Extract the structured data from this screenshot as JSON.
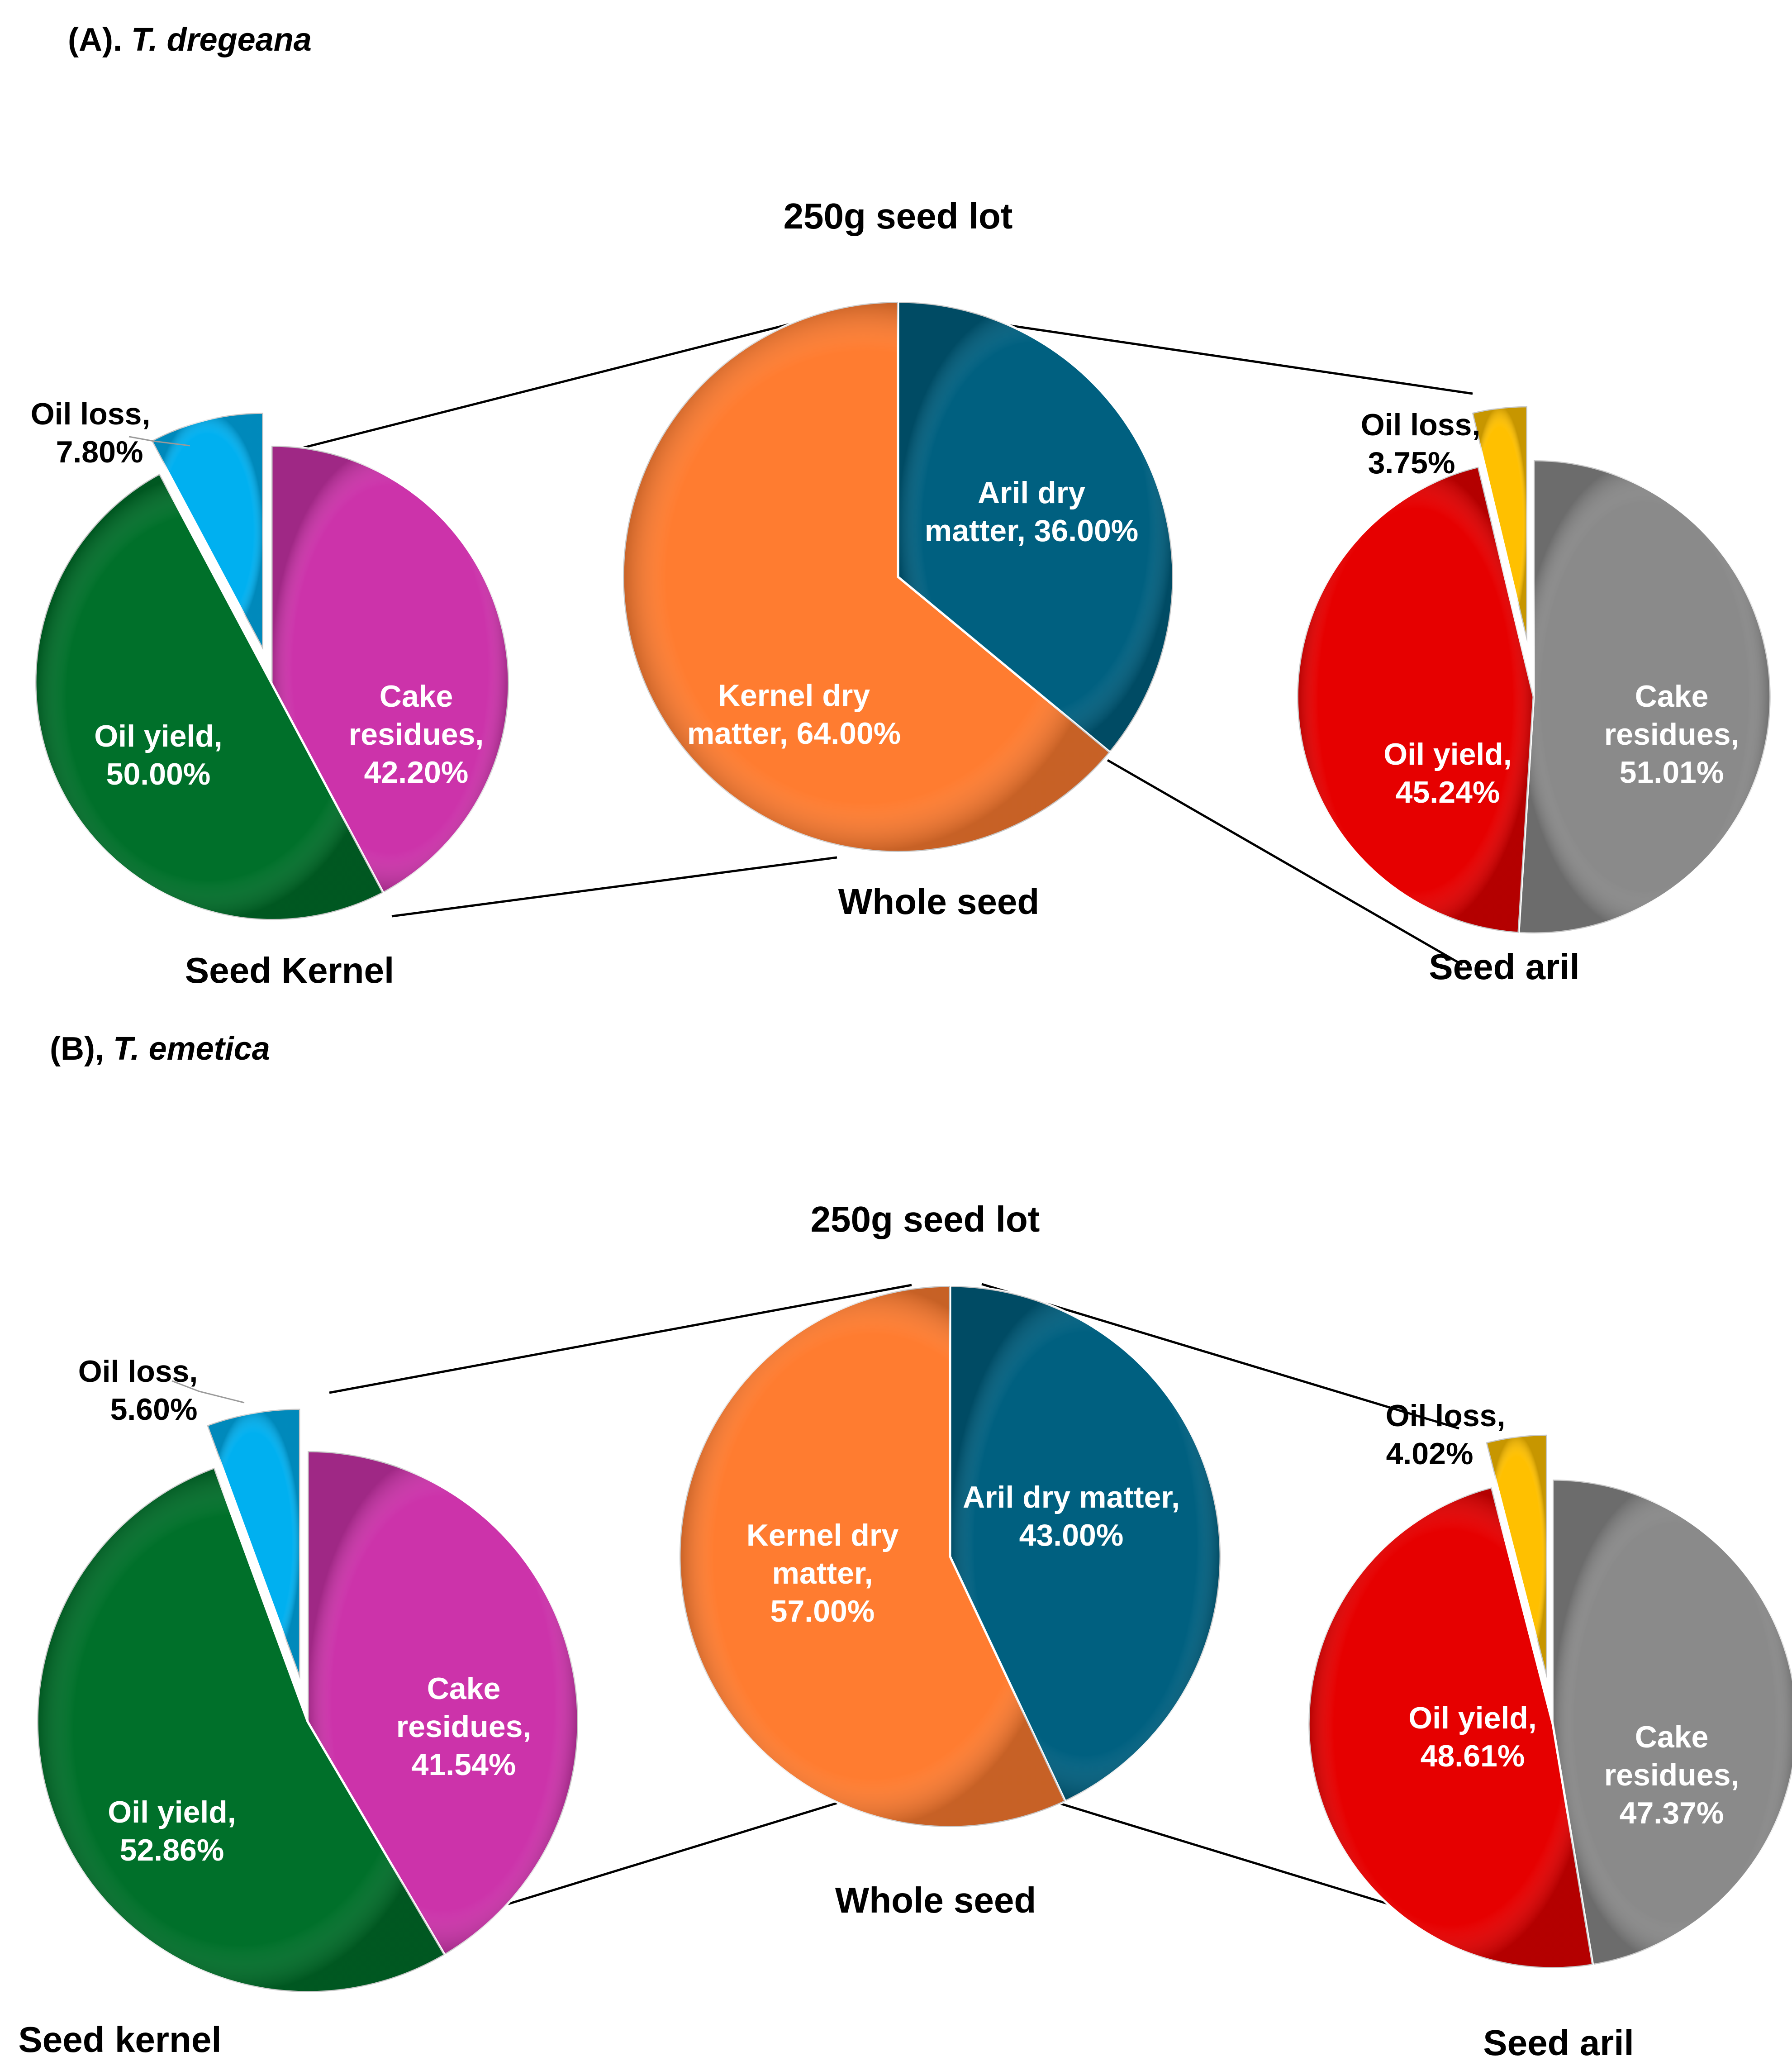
{
  "colors": {
    "oil_loss_kernel": "#00b0f0",
    "cake_residues_kernel": "#cc33aa",
    "oil_yield_kernel": "#00702a",
    "aril_dry_matter": "#006080",
    "kernel_dry_matter": "#ff7c30",
    "oil_loss_aril": "#ffc000",
    "cake_residues_aril": "#8a8a8a",
    "oil_yield_aril": "#e60000"
  },
  "panels": {
    "a": {
      "label": "(A).",
      "species": "T. dregeana",
      "top_caption": "250g seed lot",
      "kernel_caption": "Seed Kernel",
      "whole_caption": "Whole seed",
      "aril_caption": "Seed aril",
      "kernel_labels": [
        "Oil loss,",
        "7.80%",
        "Cake",
        "residues,",
        "42.20%",
        "Oil yield,",
        "50.00%"
      ],
      "whole_labels": [
        "Aril dry",
        "matter, 36.00%",
        "Kernel dry",
        "matter, 64.00%"
      ],
      "aril_labels": [
        "Oil loss,",
        "3.75%",
        "Cake",
        "residues,",
        "51.01%",
        "Oil yield,",
        "45.24%"
      ]
    },
    "b": {
      "label": "(B),",
      "species": "T. emetica",
      "top_caption": "250g seed lot",
      "kernel_caption": "Seed kernel",
      "whole_caption": "Whole seed",
      "aril_caption": "Seed aril",
      "kernel_labels": [
        "Oil loss,",
        "5.60%",
        "Cake",
        "residues,",
        "41.54%",
        "Oil yield,",
        "52.86%"
      ],
      "whole_labels": [
        "Aril dry matter,",
        "43.00%",
        "Kernel dry",
        "matter,",
        "57.00%"
      ],
      "aril_labels": [
        "Oil loss,",
        "4.02%",
        "Cake",
        "residues,",
        "47.37%",
        "Oil yield,",
        "48.61%"
      ]
    }
  },
  "chart_data": [
    {
      "type": "pie",
      "panel": "(A). T. dregeana",
      "title": "Seed Kernel",
      "slices": [
        {
          "label": "Oil loss",
          "value": 7.8
        },
        {
          "label": "Cake residues",
          "value": 42.2
        },
        {
          "label": "Oil yield",
          "value": 50.0
        }
      ]
    },
    {
      "type": "pie",
      "panel": "(A). T. dregeana",
      "title": "250g seed lot",
      "xlabel": "Whole seed",
      "slices": [
        {
          "label": "Aril dry matter",
          "value": 36.0
        },
        {
          "label": "Kernel dry matter",
          "value": 64.0
        }
      ]
    },
    {
      "type": "pie",
      "panel": "(A). T. dregeana",
      "title": "Seed aril",
      "slices": [
        {
          "label": "Oil loss",
          "value": 3.75
        },
        {
          "label": "Cake residues",
          "value": 51.01
        },
        {
          "label": "Oil yield",
          "value": 45.24
        }
      ]
    },
    {
      "type": "pie",
      "panel": "(B), T. emetica",
      "title": "Seed kernel",
      "slices": [
        {
          "label": "Oil loss",
          "value": 5.6
        },
        {
          "label": "Cake residues",
          "value": 41.54
        },
        {
          "label": "Oil yield",
          "value": 52.86
        }
      ]
    },
    {
      "type": "pie",
      "panel": "(B), T. emetica",
      "title": "250g seed lot",
      "xlabel": "Whole seed",
      "slices": [
        {
          "label": "Aril dry matter",
          "value": 43.0
        },
        {
          "label": "Kernel dry matter",
          "value": 57.0
        }
      ]
    },
    {
      "type": "pie",
      "panel": "(B), T. emetica",
      "title": "Seed aril",
      "slices": [
        {
          "label": "Oil loss",
          "value": 4.02
        },
        {
          "label": "Cake residues",
          "value": 47.37
        },
        {
          "label": "Oil yield",
          "value": 48.61
        }
      ]
    }
  ]
}
